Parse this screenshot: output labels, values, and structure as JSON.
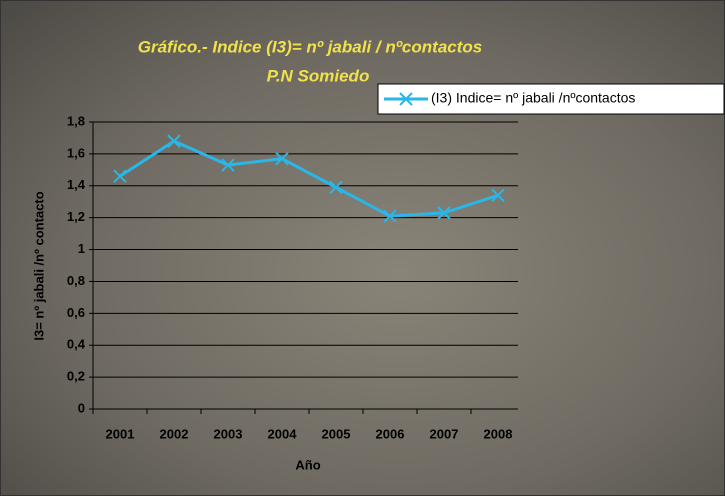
{
  "chart_data": {
    "type": "line",
    "title": "Gráfico.- Indice (I3)=  nº jabali / nºcontactos",
    "subtitle": "P.N Somiedo",
    "x_label": "Año",
    "y_label": "I3= nº jabali /nº contacto",
    "categories": [
      "2001",
      "2002",
      "2003",
      "2004",
      "2005",
      "2006",
      "2007",
      "2008"
    ],
    "series": [
      {
        "name": "(I3) Indice= nº jabali /nºcontactos",
        "color": "#29b6e8",
        "values": [
          1.46,
          1.68,
          1.53,
          1.57,
          1.39,
          1.21,
          1.23,
          1.34
        ]
      }
    ],
    "ylim": [
      0,
      1.8
    ],
    "yticks": [
      0,
      {
        "value": 0.2,
        "label": "0,2"
      },
      {
        "value": 0.4,
        "label": "0,4"
      },
      {
        "value": 0.6,
        "label": "0,6"
      },
      {
        "value": 0.8,
        "label": "0,8"
      },
      1,
      {
        "value": 1.2,
        "label": "1,2"
      },
      {
        "value": 1.4,
        "label": "1,4"
      },
      {
        "value": 1.6,
        "label": "1,6"
      },
      {
        "value": 1.8,
        "label": "1,8"
      }
    ],
    "grid": true,
    "legend": "top-right"
  }
}
